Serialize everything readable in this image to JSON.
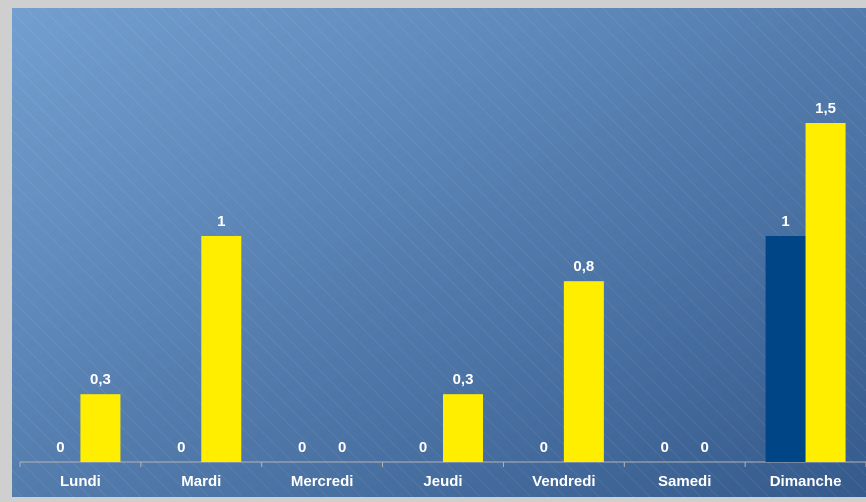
{
  "chart_data": {
    "type": "bar",
    "categories": [
      "Lundi",
      "Mardi",
      "Mercredi",
      "Jeudi",
      "Vendredi",
      "Samedi",
      "Dimanche"
    ],
    "series": [
      {
        "color": "#004586",
        "values": [
          0,
          0,
          0,
          0,
          0,
          0,
          1
        ],
        "value_labels": [
          "0",
          "0",
          "0",
          "0",
          "0",
          "0",
          "1"
        ]
      },
      {
        "color": "#ffee00",
        "values": [
          0.3,
          1,
          0,
          0.3,
          0.8,
          0,
          1.5
        ],
        "value_labels": [
          "0,3",
          "1",
          "0",
          "0,3",
          "0,8",
          "0",
          "1,5"
        ]
      }
    ],
    "ylim": [
      0,
      2
    ]
  }
}
